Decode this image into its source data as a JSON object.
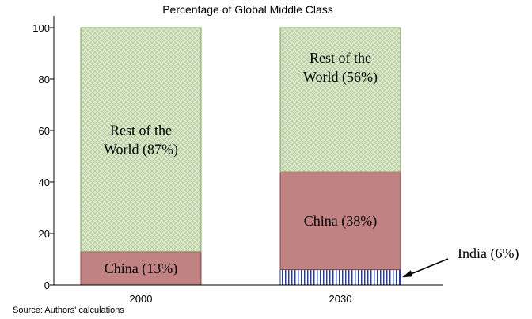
{
  "chart_data": {
    "type": "bar",
    "stacked": true,
    "title": "Percentage of Global Middle Class",
    "categories": [
      "2000",
      "2030"
    ],
    "series": [
      {
        "name": "India",
        "values": [
          0,
          6
        ],
        "labels": [
          "",
          "India (6%)"
        ],
        "color": "#1f3a93",
        "pattern": "vertical-stripes"
      },
      {
        "name": "China",
        "values": [
          13,
          38
        ],
        "labels": [
          "China (13%)",
          "China (38%)"
        ],
        "color": "#c08282",
        "pattern": "solid"
      },
      {
        "name": "Rest of the World",
        "values": [
          87,
          56
        ],
        "labels": [
          [
            "Rest of the",
            "World (87%)"
          ],
          [
            "Rest of the",
            "World (56%)"
          ]
        ],
        "color": "#d3e5c1",
        "pattern": "crosshatch"
      }
    ],
    "ylim": [
      0,
      100
    ],
    "yticks": [
      0,
      20,
      40,
      60,
      80,
      100
    ],
    "xlabel": "",
    "ylabel": "",
    "grid": false,
    "source": "Source: Authors' calculations"
  }
}
